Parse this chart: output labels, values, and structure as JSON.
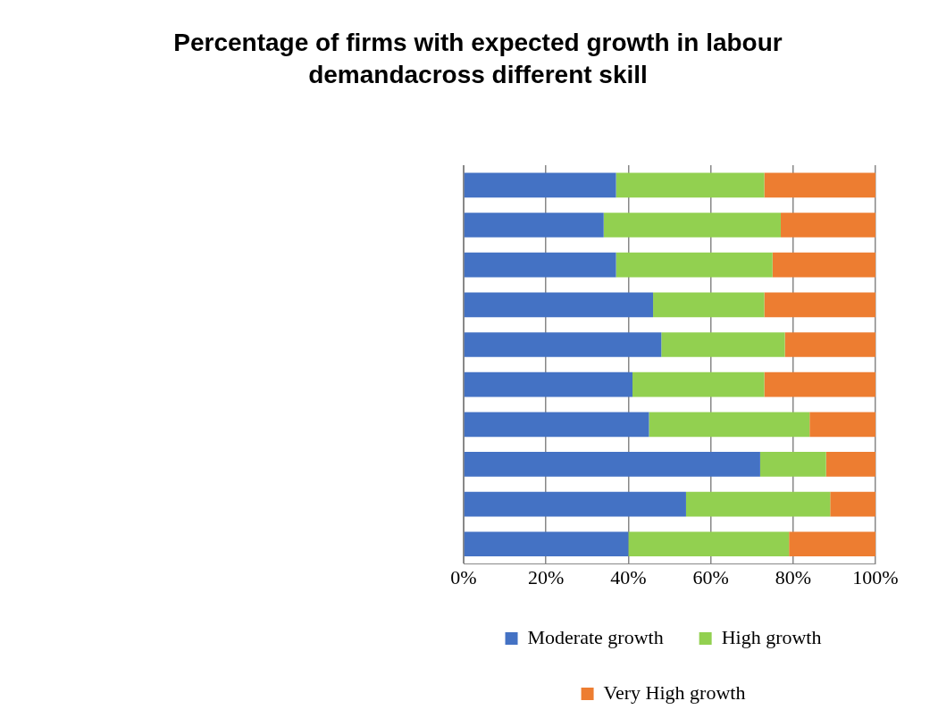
{
  "chart_data": {
    "type": "bar",
    "title": "Percentage of firms with expected growth in labour demandacross different skill",
    "orientation": "horizontal",
    "stacked": true,
    "categories": [
      null,
      null,
      null,
      null,
      null,
      null,
      null,
      null,
      null,
      null
    ],
    "series": [
      {
        "name": "Moderate growth",
        "color": "#4472c4",
        "values": [
          37,
          34,
          37,
          46,
          48,
          41,
          45,
          72,
          54,
          40
        ]
      },
      {
        "name": "High growth",
        "color": "#92d050",
        "values": [
          36,
          43,
          38,
          27,
          30,
          32,
          39,
          16,
          35,
          39
        ]
      },
      {
        "name": "Very High growth",
        "color": "#ed7d31",
        "values": [
          27,
          23,
          25,
          27,
          22,
          27,
          16,
          12,
          11,
          21
        ]
      }
    ],
    "xlim": [
      0,
      100
    ],
    "xticks": [
      {
        "value": 0,
        "label": "0%"
      },
      {
        "value": 20,
        "label": "20%"
      },
      {
        "value": 40,
        "label": "40%"
      },
      {
        "value": 60,
        "label": "60%"
      },
      {
        "value": 80,
        "label": "80%"
      },
      {
        "value": 100,
        "label": "100%"
      }
    ],
    "grid": "x",
    "legend": "bottom"
  }
}
